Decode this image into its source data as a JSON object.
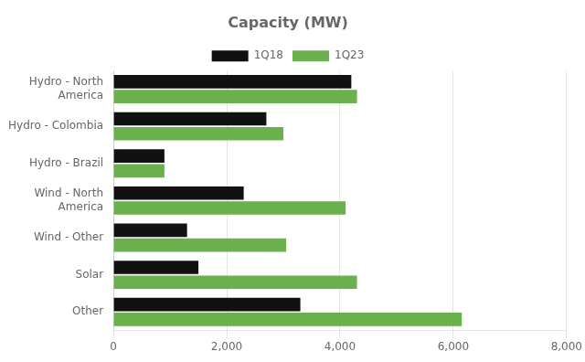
{
  "chart_data": {
    "type": "bar",
    "orientation": "horizontal",
    "title": "Capacity (MW)",
    "categories": [
      "Hydro - North\nAmerica",
      "Hydro - Colombia",
      "Hydro - Brazil",
      "Wind - North\nAmerica",
      "Wind - Other",
      "Solar",
      "Other"
    ],
    "series": [
      {
        "name": "1Q18",
        "color": "#111111",
        "values": [
          4200,
          2700,
          900,
          2300,
          1300,
          1500,
          3300
        ]
      },
      {
        "name": "1Q23",
        "color": "#6ab04c",
        "values": [
          4300,
          3000,
          900,
          4100,
          3050,
          4300,
          6150
        ]
      }
    ],
    "xlim": [
      0,
      8000
    ],
    "xticks": [
      0,
      {
        "value": 2000,
        "label": "2,000"
      },
      {
        "value": 4000,
        "label": "4,000"
      },
      {
        "value": 6000,
        "label": "6,000"
      },
      {
        "value": 8000,
        "label": "8,000"
      }
    ],
    "grid": true,
    "legend": "top"
  }
}
